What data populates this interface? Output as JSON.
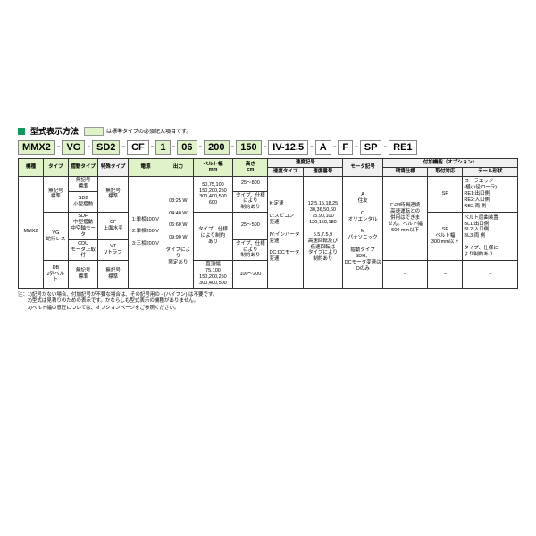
{
  "colors": {
    "accent": "#129a5a",
    "highlight": "#e0f3c8",
    "header_bg": "#f0f0f0",
    "border": "#333333",
    "text": "#000000",
    "bg": "#ffffff"
  },
  "title": "型式表示方法",
  "legend": "は標準タイプの必須記入項目です。",
  "model": {
    "segs": [
      "MMX2",
      "VG",
      "SD2",
      "CF",
      "1",
      "06",
      "200",
      "150",
      "IV-12.5",
      "A",
      "F",
      "SP",
      "RE1"
    ],
    "hl": [
      true,
      true,
      true,
      false,
      true,
      true,
      true,
      true,
      false,
      false,
      false,
      false,
      false
    ],
    "sep": "-"
  },
  "headers": {
    "r1": [
      "機種",
      "タイプ",
      "摺動タイプ",
      "特殊タイプ",
      "電源",
      "出力",
      "ベルト幅\nmm",
      "高さ\ncm",
      "速度記号",
      "モータ記号",
      "付加機能（オプション）"
    ],
    "r2": [
      "速度タイプ",
      "速度番号",
      "環境仕様",
      "取付対応",
      "テール形状"
    ]
  },
  "colHL": [
    true,
    true,
    true,
    false,
    true,
    true,
    true,
    true,
    false,
    false,
    false,
    false,
    false,
    false
  ],
  "body": {
    "c1": "MMX2",
    "c2a": "無記号\n標準",
    "c2b": "VG\n蛇行レス",
    "c2c": "DB\n2列ベルト",
    "c3a": "無記号\n標準",
    "c3b": "SD2\n小型摺動",
    "c3c": "SDH\n中型摺動\n中空軸モータ",
    "c3d": "CDU\nモータ上取付",
    "c3e": "無記号\n標準",
    "c4a": "無記号\n標準",
    "c4b": "CF\n上面水平",
    "c4c": "VT\nVトラフ",
    "c4d": "無記号\n標準",
    "c5": "1:単相100 V\n\n2:単相200 V\n\n3:三相200 V",
    "c6": "03:25 W\n\n04:40 W\n\n06:60 W\n\n09:90 W\n\nタイプにより\n限定あり",
    "c7a": "50,75,100\n150,200,250\n300,400,500\n600",
    "c7b": "タイプ、仕様\nにより制約\nあり",
    "c7c": "直頂幅\n75,100\n150,200,250\n300,400,500",
    "c8a": "25～800",
    "c8b": "タイプ、仕様\nにより\n制約あり",
    "c8c": "25～500",
    "c8d": "タイプ、仕様\nにより\n制約あり",
    "c8e": "100～200",
    "c9": "K:定速\n\nU:スピコン\n変速\n\nIV:インバータ\n変速\n\nDC:DCモータ\n変速",
    "c10": "12.5,15,18,25\n30,36,50,60\n75,90,100\n120,150,180\n\n5.5,7.5,9\n高速回転及び\n低速回転は\nタイプにより\n制約あり",
    "c11": "A\n住友\n\nO\nオリエンタル\n\nM\nパナソニック\n\n摺動タイプSDH、\nDCモータ変速は\nOのみ",
    "c12a": "F:24時間連続\n高速運転との\n併用はできま\nせん。ベルト幅\n500 mm以下",
    "c12b": "–",
    "c13a": "SP",
    "c13b": "SP\nベルト幅\n300 mm以下",
    "c13c": "–",
    "c14a": "ローラエッジ\n(極小径ローラ)\nRE1:出口側\nRE2:入口側\nRE3:両 側",
    "c14b": "ベルト屈曲装置\nBL1:出口側\nBL2:入口側\nBL3:両 側\n\nタイプ、仕様に\nより制約あり",
    "c14c": "–"
  },
  "notes": [
    "注：1)記号がない場合、付加記号が不要な場合は、その記号用の - (ハイフン) は不要です。",
    "　　2)型式は見積りのための表示です。かならしも型式表示の機種がありません。",
    "　　3)ベルト幅の意匠については、オプションページをご参照ください。"
  ]
}
